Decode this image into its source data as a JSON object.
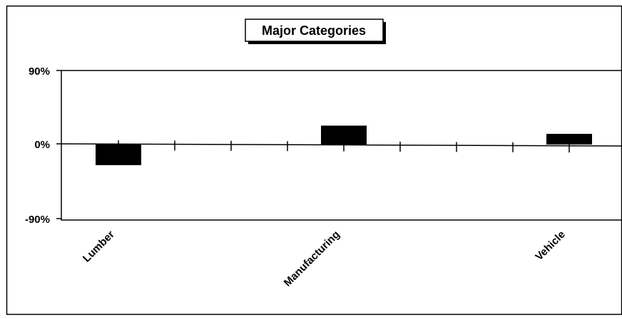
{
  "chart_data": {
    "type": "bar",
    "title": "Major Categories",
    "categories": [
      "Lumber",
      "",
      "",
      "",
      "Manufacturing",
      "",
      "",
      "",
      "Vehicle"
    ],
    "values": [
      -25,
      null,
      null,
      null,
      23,
      null,
      null,
      null,
      13
    ],
    "y_tick_labels": [
      "90%",
      "0%",
      "-90%"
    ],
    "y_ticks": [
      90,
      0,
      -90
    ],
    "ylim": [
      -90,
      90
    ],
    "xlabel": "",
    "ylabel": "",
    "legend": "none",
    "grid": false,
    "bar_color": "#000000"
  }
}
